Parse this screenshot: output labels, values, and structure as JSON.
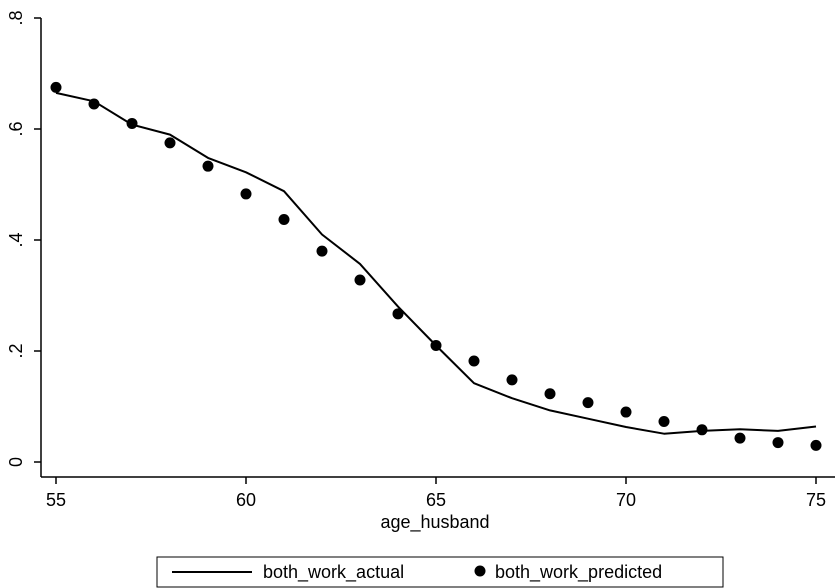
{
  "chart_data": {
    "type": "line",
    "title": "",
    "xlabel": "age_husband",
    "ylabel": "",
    "xlim": [
      55,
      75
    ],
    "ylim": [
      0,
      0.8
    ],
    "x_ticks": [
      55,
      60,
      65,
      70,
      75
    ],
    "x_tick_labels": [
      "55",
      "60",
      "65",
      "70",
      "75"
    ],
    "y_ticks": [
      0,
      0.2,
      0.4,
      0.6,
      0.8
    ],
    "y_tick_labels": [
      "0",
      ".2",
      ".4",
      ".6",
      ".8"
    ],
    "grid": false,
    "legend_position": "bottom",
    "x": [
      55,
      56,
      57,
      58,
      59,
      60,
      61,
      62,
      63,
      64,
      65,
      66,
      67,
      68,
      69,
      70,
      71,
      72,
      73,
      74,
      75
    ],
    "series": [
      {
        "name": "both_work_actual",
        "style": "line",
        "color": "#000000",
        "values": [
          0.665,
          0.65,
          0.608,
          0.59,
          0.548,
          0.522,
          0.488,
          0.41,
          0.357,
          0.28,
          0.21,
          0.142,
          0.115,
          0.093,
          0.078,
          0.063,
          0.051,
          0.056,
          0.059,
          0.056,
          0.064
        ]
      },
      {
        "name": "both_work_predicted",
        "style": "marker",
        "color": "#000000",
        "values": [
          0.675,
          0.645,
          0.61,
          0.575,
          0.533,
          0.483,
          0.437,
          0.38,
          0.328,
          0.267,
          0.21,
          0.182,
          0.148,
          0.123,
          0.107,
          0.09,
          0.073,
          0.058,
          0.043,
          0.035,
          0.03
        ]
      }
    ]
  }
}
